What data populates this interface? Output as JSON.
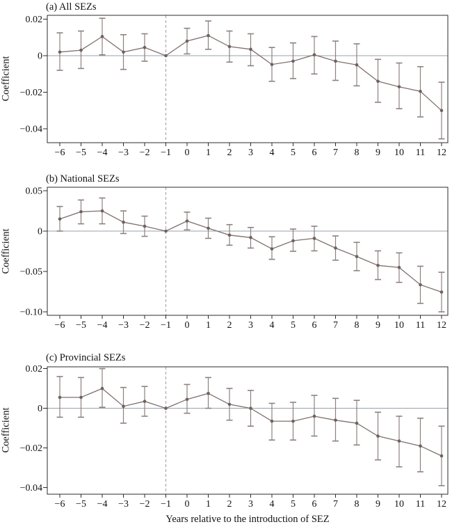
{
  "figure": {
    "xlabel": "Years relative to the introduction of SEZ",
    "ylabel": "Coefficient",
    "background": "#ffffff"
  },
  "colors": {
    "series": "#7e706d",
    "error_bar": "#8e817e",
    "marker": "#6e615e",
    "zero_line": "#99a0ab",
    "reference_dash": "#a3a3a3",
    "axis_border": "#2b2b2b",
    "text": "#121212"
  },
  "x_axis": {
    "ticks": [
      {
        "v": -6,
        "label": "−6"
      },
      {
        "v": -5,
        "label": "−5"
      },
      {
        "v": -4,
        "label": "−4"
      },
      {
        "v": -3,
        "label": "−3"
      },
      {
        "v": -2,
        "label": "−2"
      },
      {
        "v": -1,
        "label": "−1"
      },
      {
        "v": 0,
        "label": "0"
      },
      {
        "v": 1,
        "label": "1"
      },
      {
        "v": 2,
        "label": "2"
      },
      {
        "v": 3,
        "label": "3"
      },
      {
        "v": 4,
        "label": "4"
      },
      {
        "v": 5,
        "label": "5"
      },
      {
        "v": 6,
        "label": "6"
      },
      {
        "v": 7,
        "label": "7"
      },
      {
        "v": 8,
        "label": "8"
      },
      {
        "v": 9,
        "label": "9"
      },
      {
        "v": 10,
        "label": "10"
      },
      {
        "v": 11,
        "label": "11"
      },
      {
        "v": 12,
        "label": "12"
      }
    ]
  },
  "chart_data": [
    {
      "type": "line",
      "subtype": "event_study_with_error_bars",
      "title": "(a) All SEZs",
      "ylabel": "Coefficient",
      "x": [
        -6,
        -5,
        -4,
        -3,
        -2,
        -1,
        0,
        1,
        2,
        3,
        4,
        5,
        6,
        7,
        8,
        9,
        10,
        11,
        12
      ],
      "values": [
        0.002,
        0.003,
        0.0105,
        0.002,
        0.0045,
        0,
        0.008,
        0.011,
        0.005,
        0.0035,
        -0.0048,
        -0.003,
        0.0005,
        -0.003,
        -0.005,
        -0.014,
        -0.017,
        -0.0195,
        -0.03
      ],
      "ci_low": [
        -0.008,
        -0.007,
        0.0005,
        -0.0075,
        -0.003,
        null,
        0.001,
        0.0035,
        -0.0035,
        -0.0055,
        -0.014,
        -0.0125,
        -0.01,
        -0.0135,
        -0.0165,
        -0.0255,
        -0.029,
        -0.0335,
        -0.0455
      ],
      "ci_high": [
        0.0125,
        0.0135,
        0.0205,
        0.0115,
        0.012,
        null,
        0.015,
        0.019,
        0.0135,
        0.012,
        0.0045,
        0.007,
        0.0105,
        0.008,
        0.0065,
        -0.002,
        -0.004,
        -0.006,
        -0.0145
      ],
      "reference_x": -1,
      "vline_x": -1,
      "zero_line": true,
      "grid": false,
      "legend": false,
      "ylim": [
        -0.0476,
        0.0221
      ],
      "yticks": [
        {
          "v": 0.02,
          "label": "0.02"
        },
        {
          "v": 0,
          "label": "0"
        },
        {
          "v": -0.02,
          "label": "−0.02"
        },
        {
          "v": -0.04,
          "label": "−0.04"
        }
      ]
    },
    {
      "type": "line",
      "subtype": "event_study_with_error_bars",
      "title": "(b) National SEZs",
      "ylabel": "Coefficient",
      "x": [
        -6,
        -5,
        -4,
        -3,
        -2,
        -1,
        0,
        1,
        2,
        3,
        4,
        5,
        6,
        7,
        8,
        9,
        10,
        11,
        12
      ],
      "values": [
        0.015,
        0.024,
        0.025,
        0.011,
        0.006,
        0,
        0.0125,
        0.0035,
        -0.005,
        -0.008,
        -0.022,
        -0.012,
        -0.009,
        -0.021,
        -0.0315,
        -0.0425,
        -0.045,
        -0.0665,
        -0.0755
      ],
      "ci_low": [
        0,
        0.009,
        0.009,
        -0.003,
        -0.0065,
        null,
        0.0015,
        -0.009,
        -0.0175,
        -0.021,
        -0.035,
        -0.025,
        -0.0245,
        -0.036,
        -0.049,
        -0.06,
        -0.0635,
        -0.0895,
        -0.1
      ],
      "ci_high": [
        0.0305,
        0.0385,
        0.041,
        0.025,
        0.0185,
        null,
        0.0235,
        0.016,
        0.008,
        0.0045,
        -0.007,
        0.0025,
        0.006,
        -0.006,
        -0.014,
        -0.0245,
        -0.027,
        -0.0435,
        -0.051
      ],
      "reference_x": -1,
      "vline_x": -1,
      "zero_line": true,
      "grid": false,
      "legend": false,
      "ylim": [
        -0.1043,
        0.0543
      ],
      "yticks": [
        {
          "v": 0.05,
          "label": "0.05"
        },
        {
          "v": 0,
          "label": "0"
        },
        {
          "v": -0.05,
          "label": "−0.05"
        },
        {
          "v": -0.1,
          "label": "−0.10"
        }
      ]
    },
    {
      "type": "line",
      "subtype": "event_study_with_error_bars",
      "title": "(c) Provincial SEZs",
      "ylabel": "Coefficient",
      "x": [
        -6,
        -5,
        -4,
        -3,
        -2,
        -1,
        0,
        1,
        2,
        3,
        4,
        5,
        6,
        7,
        8,
        9,
        10,
        11,
        12
      ],
      "values": [
        0.0055,
        0.0055,
        0.01,
        0.001,
        0.0035,
        0,
        0.0045,
        0.0075,
        0.002,
        0,
        -0.0065,
        -0.0065,
        -0.004,
        -0.006,
        -0.0075,
        -0.014,
        -0.0165,
        -0.019,
        -0.024
      ],
      "ci_low": [
        -0.0045,
        -0.0045,
        0.0005,
        -0.0075,
        -0.004,
        null,
        -0.0025,
        0,
        -0.006,
        -0.009,
        -0.016,
        -0.016,
        -0.014,
        -0.0165,
        -0.0185,
        -0.026,
        -0.0295,
        -0.032,
        -0.039
      ],
      "ci_high": [
        0.016,
        0.0155,
        0.02,
        0.0105,
        0.011,
        null,
        0.012,
        0.0155,
        0.01,
        0.009,
        0.0025,
        0.003,
        0.0065,
        0.005,
        0.004,
        -0.002,
        -0.004,
        -0.005,
        -0.009
      ],
      "reference_x": -1,
      "vline_x": -1,
      "zero_line": true,
      "grid": false,
      "legend": false,
      "ylim": [
        -0.0433,
        0.0209
      ],
      "yticks": [
        {
          "v": 0.02,
          "label": "0.02"
        },
        {
          "v": 0,
          "label": "0"
        },
        {
          "v": -0.02,
          "label": "−0.02"
        },
        {
          "v": -0.04,
          "label": "−0.04"
        }
      ]
    }
  ]
}
